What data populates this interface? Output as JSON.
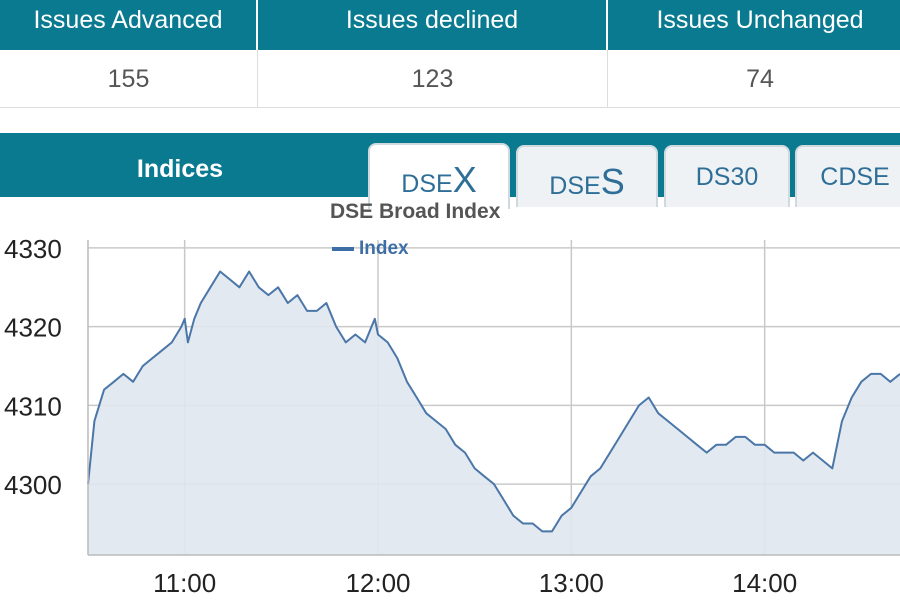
{
  "stats": {
    "headers": [
      "Issues Advanced",
      "Issues declined",
      "Issues Unchanged"
    ],
    "values": [
      "155",
      "123",
      "74"
    ]
  },
  "indices": {
    "title": "Indices",
    "tabs": [
      {
        "prefix": "DSE",
        "suffix": "X",
        "active": true
      },
      {
        "prefix": "DSE",
        "suffix": "S",
        "active": false
      },
      {
        "prefix": "DS30",
        "suffix": "",
        "active": false
      },
      {
        "prefix": "CDSE",
        "suffix": "",
        "active": false
      }
    ]
  },
  "colors": {
    "header_bg": "#0a7a91",
    "line": "#4a76a8",
    "area": "#dfe7f0"
  },
  "chart_data": {
    "type": "area",
    "title": "DSE Broad Index",
    "legend": [
      {
        "name": "Index",
        "position": "top-center"
      }
    ],
    "xlabel": "",
    "ylabel": "",
    "x_ticks": [
      "11:00",
      "12:00",
      "13:00",
      "14:00"
    ],
    "y_ticks": [
      4300,
      4310,
      4320,
      4330
    ],
    "xlim": [
      "10:30",
      "14:42"
    ],
    "ylim": [
      4291,
      4331
    ],
    "grid": true,
    "series": [
      {
        "name": "Index",
        "x": [
          "10:30",
          "10:32",
          "10:35",
          "10:38",
          "10:41",
          "10:44",
          "10:47",
          "10:50",
          "10:53",
          "10:56",
          "10:59",
          "11:00",
          "11:01",
          "11:03",
          "11:05",
          "11:08",
          "11:11",
          "11:14",
          "11:17",
          "11:20",
          "11:23",
          "11:26",
          "11:29",
          "11:32",
          "11:35",
          "11:38",
          "11:41",
          "11:44",
          "11:47",
          "11:50",
          "11:53",
          "11:56",
          "11:59",
          "12:00",
          "12:03",
          "12:06",
          "12:09",
          "12:12",
          "12:15",
          "12:18",
          "12:21",
          "12:24",
          "12:27",
          "12:30",
          "12:33",
          "12:36",
          "12:39",
          "12:42",
          "12:45",
          "12:48",
          "12:51",
          "12:54",
          "12:57",
          "13:00",
          "13:03",
          "13:06",
          "13:09",
          "13:12",
          "13:15",
          "13:18",
          "13:21",
          "13:24",
          "13:27",
          "13:30",
          "13:33",
          "13:36",
          "13:39",
          "13:42",
          "13:45",
          "13:48",
          "13:51",
          "13:54",
          "13:57",
          "14:00",
          "14:03",
          "14:06",
          "14:09",
          "14:12",
          "14:15",
          "14:18",
          "14:21",
          "14:24",
          "14:27",
          "14:30",
          "14:33",
          "14:36",
          "14:39",
          "14:42"
        ],
        "values": [
          4300,
          4308,
          4312,
          4313,
          4314,
          4313,
          4315,
          4316,
          4317,
          4318,
          4320,
          4321,
          4318,
          4321,
          4323,
          4325,
          4327,
          4326,
          4325,
          4327,
          4325,
          4324,
          4325,
          4323,
          4324,
          4322,
          4322,
          4323,
          4320,
          4318,
          4319,
          4318,
          4321,
          4319,
          4318,
          4316,
          4313,
          4311,
          4309,
          4308,
          4307,
          4305,
          4304,
          4302,
          4301,
          4300,
          4298,
          4296,
          4295,
          4295,
          4294,
          4294,
          4296,
          4297,
          4299,
          4301,
          4302,
          4304,
          4306,
          4308,
          4310,
          4311,
          4309,
          4308,
          4307,
          4306,
          4305,
          4304,
          4305,
          4305,
          4306,
          4306,
          4305,
          4305,
          4304,
          4304,
          4304,
          4303,
          4304,
          4303,
          4302,
          4308,
          4311,
          4313,
          4314,
          4314,
          4313,
          4314
        ]
      }
    ]
  }
}
